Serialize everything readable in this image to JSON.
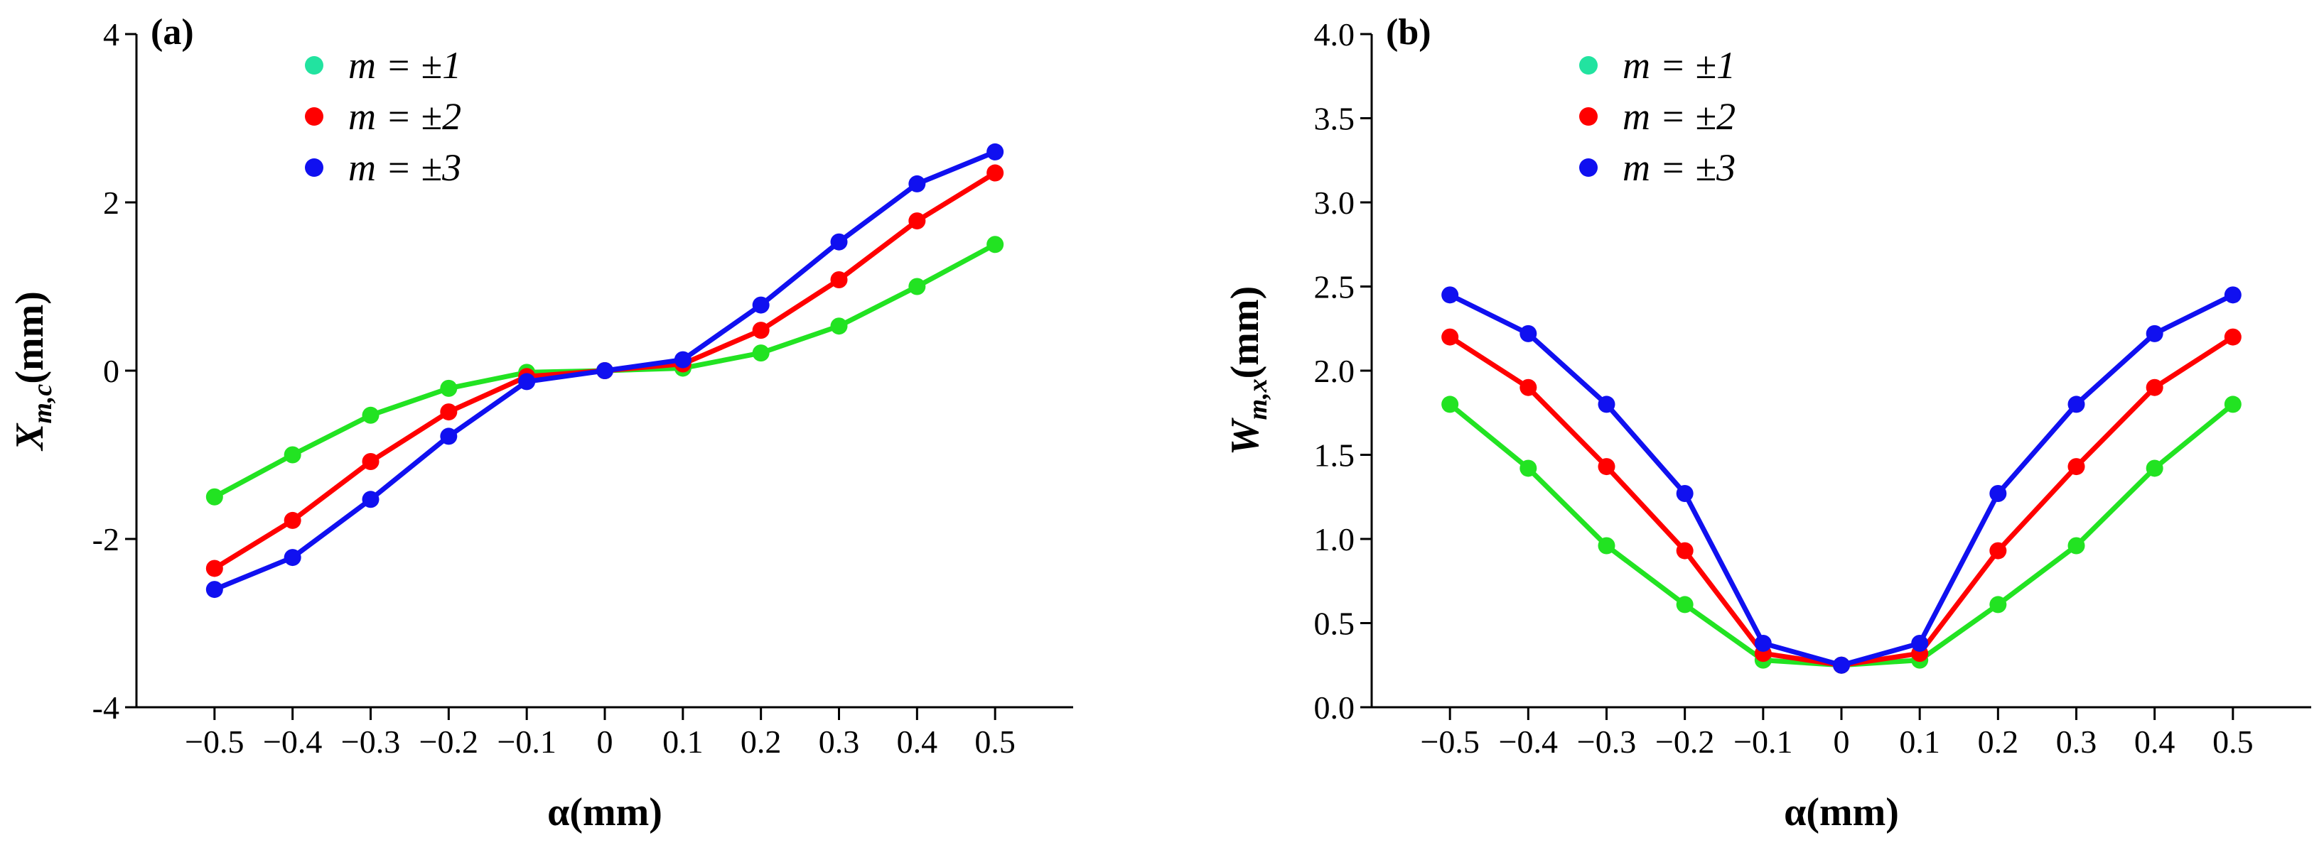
{
  "chart_data": [
    {
      "type": "line",
      "panel_label": "(a)",
      "xlabel": "α(mm)",
      "ylabel": "X_{m,c}(mm)",
      "ylabel_main": "X",
      "ylabel_sub": "m,c",
      "ylabel_unit": "(mm)",
      "xlim": [
        -0.6,
        0.6
      ],
      "ylim": [
        -4,
        4
      ],
      "x_ticks": [
        -0.5,
        -0.4,
        -0.3,
        -0.2,
        -0.1,
        0,
        0.1,
        0.2,
        0.3,
        0.4,
        0.5
      ],
      "x_tick_labels": [
        "−0.5",
        "−0.4",
        "−0.3",
        "−0.2",
        "−0.1",
        "0",
        "0.1",
        "0.2",
        "0.3",
        "0.4",
        "0.5"
      ],
      "y_ticks": [
        -4,
        -2,
        0,
        2,
        4
      ],
      "y_tick_labels": [
        "-4",
        "-2",
        "0",
        "2",
        "4"
      ],
      "legend_position": "top-left",
      "grid": false,
      "x": [
        -0.5,
        -0.4,
        -0.3,
        -0.2,
        -0.1,
        0,
        0.1,
        0.2,
        0.3,
        0.4,
        0.5
      ],
      "series": [
        {
          "name": "m = ±1",
          "color": "#22e322",
          "marker_color": "#22e3a0",
          "values": [
            -1.5,
            -1.0,
            -0.53,
            -0.21,
            -0.02,
            0,
            0.03,
            0.21,
            0.53,
            1.0,
            1.5
          ]
        },
        {
          "name": "m = ±2",
          "color": "#ff0000",
          "values": [
            -2.35,
            -1.78,
            -1.08,
            -0.49,
            -0.07,
            0,
            0.08,
            0.48,
            1.08,
            1.78,
            2.35
          ]
        },
        {
          "name": "m = ±3",
          "color": "#1010f0",
          "values": [
            -2.6,
            -2.22,
            -1.53,
            -0.78,
            -0.13,
            0,
            0.13,
            0.78,
            1.53,
            2.22,
            2.6
          ]
        }
      ]
    },
    {
      "type": "line",
      "panel_label": "(b)",
      "xlabel": "α(mm)",
      "ylabel": "W_{m,x}(mm)",
      "ylabel_main": "W",
      "ylabel_sub": "m,x",
      "ylabel_unit": "(mm)",
      "xlim": [
        -0.6,
        0.6
      ],
      "ylim": [
        0,
        4
      ],
      "x_ticks": [
        -0.5,
        -0.4,
        -0.3,
        -0.2,
        -0.1,
        0,
        0.1,
        0.2,
        0.3,
        0.4,
        0.5
      ],
      "x_tick_labels": [
        "−0.5",
        "−0.4",
        "−0.3",
        "−0.2",
        "−0.1",
        "0",
        "0.1",
        "0.2",
        "0.3",
        "0.4",
        "0.5"
      ],
      "y_ticks": [
        0,
        0.5,
        1.0,
        1.5,
        2.0,
        2.5,
        3.0,
        3.5,
        4.0
      ],
      "y_tick_labels": [
        "0.0",
        "0.5",
        "1.0",
        "1.5",
        "2.0",
        "2.5",
        "3.0",
        "3.5",
        "4.0"
      ],
      "legend_position": "top-left",
      "grid": false,
      "x": [
        -0.5,
        -0.4,
        -0.3,
        -0.2,
        -0.1,
        0,
        0.1,
        0.2,
        0.3,
        0.4,
        0.5
      ],
      "series": [
        {
          "name": "m = ±1",
          "color": "#22e322",
          "marker_color": "#22e3a0",
          "values": [
            1.8,
            1.42,
            0.96,
            0.61,
            0.28,
            0.25,
            0.28,
            0.61,
            0.96,
            1.42,
            1.8
          ]
        },
        {
          "name": "m = ±2",
          "color": "#ff0000",
          "values": [
            2.2,
            1.9,
            1.43,
            0.93,
            0.32,
            0.25,
            0.32,
            0.93,
            1.43,
            1.9,
            2.2
          ]
        },
        {
          "name": "m = ±3",
          "color": "#1010f0",
          "values": [
            2.45,
            2.22,
            1.8,
            1.27,
            0.38,
            0.25,
            0.38,
            1.27,
            1.8,
            2.22,
            2.45
          ]
        }
      ]
    }
  ]
}
